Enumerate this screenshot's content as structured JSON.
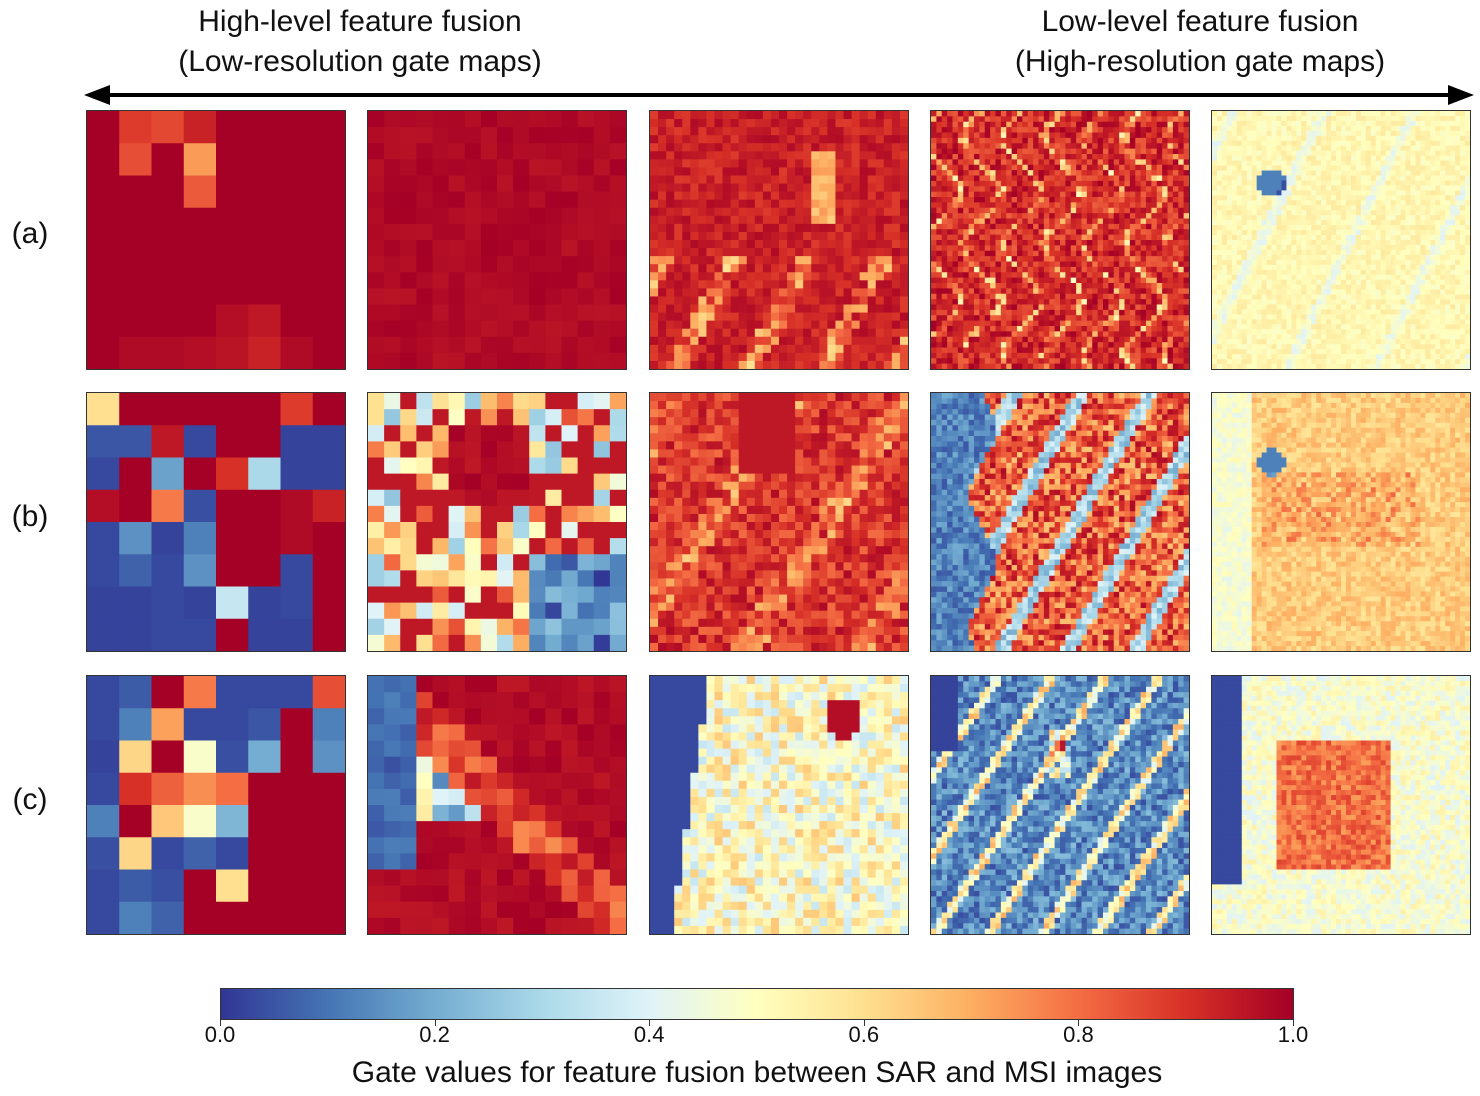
{
  "header": {
    "left_line1": "High-level feature fusion",
    "left_line2": "(Low-resolution gate maps)",
    "right_line1": "Low-level feature fusion",
    "right_line2": "(High-resolution gate maps)"
  },
  "rows": [
    {
      "label": "(a)"
    },
    {
      "label": "(b)"
    },
    {
      "label": "(c)"
    }
  ],
  "colorbar": {
    "colormap": "RdYlBu_r",
    "min": 0.0,
    "max": 1.0,
    "ticks": [
      "0.0",
      "0.2",
      "0.4",
      "0.6",
      "0.8",
      "1.0"
    ],
    "title": "Gate values for feature fusion between SAR and MSI images"
  },
  "colors": {
    "low": "#313695",
    "mid": "#ffffbf",
    "high": "#a50026"
  }
}
